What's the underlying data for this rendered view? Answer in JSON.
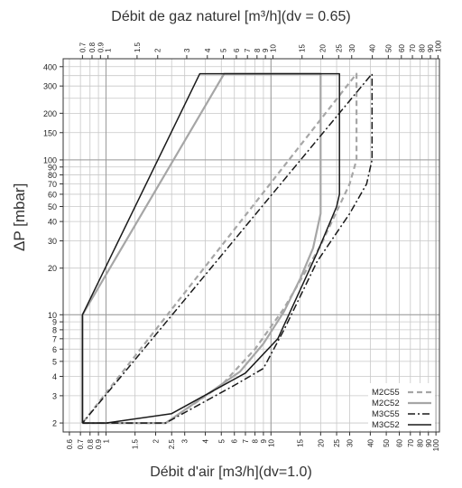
{
  "chart_data": {
    "type": "line",
    "title_top": "Débit de gaz naturel [m³/h](dv = 0.65)",
    "xlabel_bottom": "Débit d'air [m3/h](dv=1.0)",
    "ylabel": "ΔP [mbar]",
    "x_scale": "log",
    "y_scale": "log",
    "xlim_air": [
      0.55,
      105
    ],
    "ylim": [
      1.75,
      450
    ],
    "grid": true,
    "legend_position": "bottom-right",
    "x_ticks_air": [
      0.6,
      0.7,
      0.8,
      0.9,
      1,
      1.5,
      2,
      2.5,
      3,
      4,
      5,
      6,
      7,
      8,
      9,
      10,
      15,
      20,
      25,
      30,
      40,
      50,
      60,
      70,
      80,
      90,
      100
    ],
    "x_ticks_air_labels": [
      "0.6",
      "0.7",
      "0.8",
      "0.9",
      "1",
      "1.5",
      "2",
      "2.5",
      "3",
      "4",
      "5",
      "6",
      "7",
      "8",
      "9",
      "10",
      "15",
      "20",
      "25",
      "30",
      "40",
      "50",
      "60",
      "70",
      "80",
      "90",
      "100"
    ],
    "x_ticks_gas": [
      0.7,
      0.8,
      0.9,
      1,
      1.5,
      2,
      3,
      4,
      5,
      6,
      7,
      8,
      9,
      10,
      15,
      20,
      25,
      30,
      40,
      50,
      60,
      70,
      80,
      90,
      100
    ],
    "x_ticks_gas_labels": [
      "0.7",
      "0.8",
      "0.9",
      "1",
      "1.5",
      "2",
      "3",
      "4",
      "5",
      "6",
      "7",
      "8",
      "9",
      "10",
      "15",
      "20",
      "25",
      "30",
      "40",
      "50",
      "60",
      "70",
      "80",
      "90",
      "100"
    ],
    "y_ticks": [
      2,
      3,
      4,
      5,
      6,
      7,
      8,
      9,
      10,
      20,
      30,
      40,
      50,
      60,
      70,
      80,
      90,
      100,
      150,
      200,
      300,
      400
    ],
    "y_ticks_labels": [
      "2",
      "3",
      "4",
      "5",
      "6",
      "7",
      "8",
      "9",
      "10",
      "20",
      "30",
      "40",
      "50",
      "60",
      "70",
      "80",
      "90",
      "100",
      "150",
      "200",
      "300",
      "400"
    ],
    "series": [
      {
        "name": "M2C55",
        "color": "#a6a6a6",
        "dash": "dashed",
        "points": [
          [
            0.72,
            2
          ],
          [
            2.3,
            2
          ],
          [
            5,
            3.5
          ],
          [
            8,
            6
          ],
          [
            12,
            11
          ],
          [
            20,
            28
          ],
          [
            30,
            70
          ],
          [
            33,
            100
          ],
          [
            33,
            360
          ],
          [
            0.72,
            2
          ]
        ]
      },
      {
        "name": "M2C52",
        "color": "#a6a6a6",
        "dash": "solid",
        "points": [
          [
            0.72,
            2
          ],
          [
            2.3,
            2
          ],
          [
            4,
            3
          ],
          [
            6.5,
            4.3
          ],
          [
            9,
            6.5
          ],
          [
            12,
            10.5
          ],
          [
            15,
            17
          ],
          [
            18,
            27
          ],
          [
            20,
            45
          ],
          [
            20,
            360
          ],
          [
            5.2,
            360
          ],
          [
            0.72,
            10
          ],
          [
            0.72,
            2
          ]
        ]
      },
      {
        "name": "M3C55",
        "color": "#1a1a1a",
        "dash": "dashdot",
        "points": [
          [
            0.72,
            2
          ],
          [
            2.3,
            2
          ],
          [
            6,
            3.5
          ],
          [
            9,
            4.5
          ],
          [
            12,
            8
          ],
          [
            19,
            22
          ],
          [
            30,
            45
          ],
          [
            38,
            70
          ],
          [
            41,
            100
          ],
          [
            41,
            360
          ],
          [
            0.72,
            2
          ]
        ]
      },
      {
        "name": "M3C52",
        "color": "#1a1a1a",
        "dash": "solid",
        "points": [
          [
            0.72,
            2
          ],
          [
            1,
            2
          ],
          [
            2.5,
            2.3
          ],
          [
            7,
            4.2
          ],
          [
            11,
            7
          ],
          [
            19,
            25
          ],
          [
            25,
            50
          ],
          [
            26,
            60
          ],
          [
            26,
            360
          ],
          [
            3.7,
            360
          ],
          [
            0.72,
            10
          ],
          [
            0.72,
            2
          ]
        ]
      }
    ]
  }
}
